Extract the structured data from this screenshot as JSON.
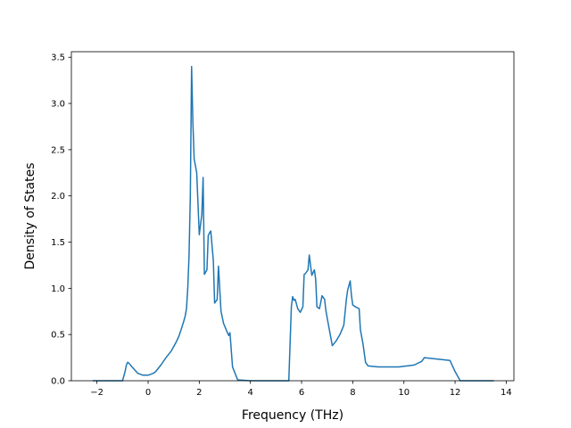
{
  "chart_data": {
    "type": "line",
    "title": "",
    "xlabel": "Frequency (THz)",
    "ylabel": "Density of States",
    "xlim": [
      -3.0,
      14.3
    ],
    "ylim": [
      0.0,
      3.56
    ],
    "xticks": [
      -2,
      0,
      2,
      4,
      6,
      8,
      10,
      12,
      14
    ],
    "yticks": [
      0.0,
      0.5,
      1.0,
      1.5,
      2.0,
      2.5,
      3.0,
      3.5
    ],
    "xtick_labels": [
      "−2",
      "0",
      "2",
      "4",
      "6",
      "8",
      "10",
      "12",
      "14"
    ],
    "ytick_labels": [
      "0.0",
      "0.5",
      "1.0",
      "1.5",
      "2.0",
      "2.5",
      "3.0",
      "3.5"
    ],
    "grid": false,
    "legend": "none",
    "colors": {
      "line": "#1f77b4",
      "axes": "#000000",
      "background": "#ffffff"
    },
    "series": [
      {
        "x": [
          -2.15,
          -1.5,
          -1.0,
          -0.9,
          -0.85,
          -0.8,
          -0.75,
          -0.6,
          -0.4,
          -0.2,
          0.0,
          0.2,
          0.3,
          0.5,
          0.7,
          0.9,
          1.1,
          1.2,
          1.3,
          1.4,
          1.45,
          1.5,
          1.55,
          1.6,
          1.65,
          1.7,
          1.75,
          1.8,
          1.9,
          2.0,
          2.1,
          2.15,
          2.2,
          2.3,
          2.35,
          2.4,
          2.45,
          2.55,
          2.6,
          2.7,
          2.75,
          2.85,
          2.95,
          3.1,
          3.15,
          3.2,
          3.3,
          3.5,
          4.0,
          5.5,
          5.55,
          5.6,
          5.65,
          5.7,
          5.75,
          5.85,
          5.95,
          6.05,
          6.1,
          6.15,
          6.25,
          6.3,
          6.35,
          6.4,
          6.5,
          6.55,
          6.6,
          6.7,
          6.8,
          6.85,
          6.9,
          6.95,
          7.0,
          7.2,
          7.35,
          7.5,
          7.65,
          7.75,
          7.8,
          7.9,
          7.95,
          8.0,
          8.1,
          8.25,
          8.3,
          8.4,
          8.5,
          8.6,
          9.0,
          9.8,
          10.4,
          10.7,
          10.8,
          11.8,
          11.9,
          12.0,
          12.2,
          12.5,
          13.5
        ],
        "y": [
          0.0,
          0.0,
          0.0,
          0.1,
          0.17,
          0.2,
          0.19,
          0.14,
          0.08,
          0.06,
          0.06,
          0.08,
          0.1,
          0.17,
          0.25,
          0.32,
          0.42,
          0.48,
          0.56,
          0.65,
          0.7,
          0.78,
          1.0,
          1.35,
          2.0,
          3.4,
          2.8,
          2.4,
          2.25,
          1.58,
          1.8,
          2.2,
          1.15,
          1.2,
          1.57,
          1.6,
          1.62,
          1.3,
          0.84,
          0.88,
          1.24,
          0.75,
          0.62,
          0.52,
          0.49,
          0.52,
          0.15,
          0.01,
          0.0,
          0.0,
          0.4,
          0.8,
          0.91,
          0.87,
          0.88,
          0.78,
          0.74,
          0.8,
          1.15,
          1.16,
          1.2,
          1.36,
          1.25,
          1.14,
          1.2,
          1.1,
          0.8,
          0.78,
          0.92,
          0.9,
          0.88,
          0.76,
          0.68,
          0.38,
          0.43,
          0.5,
          0.6,
          0.88,
          0.98,
          1.08,
          0.92,
          0.82,
          0.8,
          0.78,
          0.55,
          0.4,
          0.2,
          0.16,
          0.15,
          0.15,
          0.17,
          0.21,
          0.25,
          0.22,
          0.16,
          0.1,
          0.0,
          0.0,
          0.0
        ]
      }
    ]
  }
}
